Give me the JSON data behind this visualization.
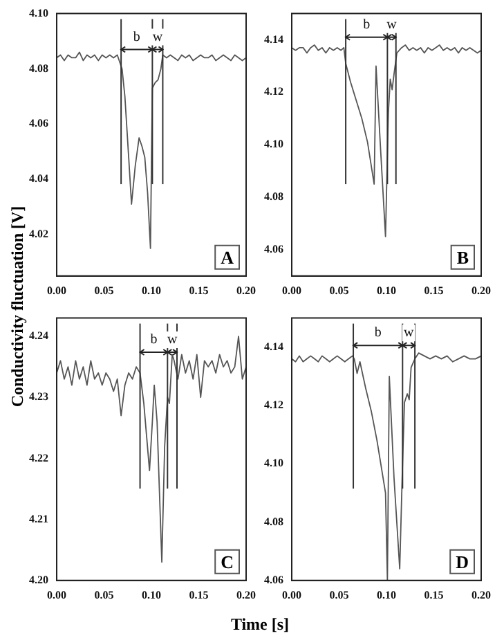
{
  "chart_data": [
    {
      "type": "line",
      "title": "A",
      "ylabel": "Conductivity fluctuation [V]",
      "xlim": [
        0,
        0.2
      ],
      "ylim": [
        4.005,
        4.1
      ],
      "xticks": [
        {
          "value": 0,
          "label": "0.00"
        },
        {
          "value": 0.05,
          "label": "0.05"
        },
        {
          "value": 0.1,
          "label": "0.10"
        },
        {
          "value": 0.15,
          "label": "0.15"
        },
        {
          "value": 0.2,
          "label": "0.20"
        }
      ],
      "yticks": [
        {
          "value": 4.02,
          "label": "4.02"
        },
        {
          "value": 4.04,
          "label": "4.04"
        },
        {
          "value": 4.06,
          "label": "4.06"
        },
        {
          "value": 4.08,
          "label": "4.08"
        },
        {
          "value": 4.1,
          "label": "4.10"
        }
      ],
      "x": [
        0,
        0.004,
        0.008,
        0.012,
        0.016,
        0.02,
        0.024,
        0.028,
        0.032,
        0.036,
        0.04,
        0.044,
        0.048,
        0.052,
        0.056,
        0.06,
        0.064,
        0.067,
        0.069,
        0.072,
        0.076,
        0.079,
        0.083,
        0.087,
        0.09,
        0.093,
        0.096,
        0.099,
        0.101,
        0.104,
        0.107,
        0.11,
        0.112,
        0.116,
        0.12,
        0.124,
        0.128,
        0.132,
        0.136,
        0.14,
        0.144,
        0.148,
        0.152,
        0.156,
        0.16,
        0.164,
        0.168,
        0.172,
        0.176,
        0.18,
        0.184,
        0.188,
        0.192,
        0.196,
        0.2
      ],
      "series": [
        {
          "color": "#555555",
          "values": [
            4.084,
            4.085,
            4.083,
            4.085,
            4.084,
            4.084,
            4.086,
            4.083,
            4.085,
            4.084,
            4.085,
            4.083,
            4.085,
            4.084,
            4.085,
            4.084,
            4.085,
            4.082,
            4.08,
            4.07,
            4.048,
            4.031,
            4.045,
            4.055,
            4.052,
            4.048,
            4.035,
            4.015,
            4.073,
            4.075,
            4.076,
            4.08,
            4.085,
            4.084,
            4.085,
            4.084,
            4.083,
            4.085,
            4.084,
            4.085,
            4.083,
            4.084,
            4.085,
            4.084,
            4.084,
            4.085,
            4.083,
            4.084,
            4.085,
            4.084,
            4.083,
            4.085,
            4.084,
            4.083,
            4.084
          ]
        }
      ],
      "ref_lines": [
        {
          "axis": "x",
          "value": 0.068,
          "color": "#333333"
        },
        {
          "axis": "x",
          "value": 0.101,
          "color": "#333333"
        },
        {
          "axis": "x",
          "value": 0.112,
          "color": "#333333"
        }
      ],
      "annotations": [
        "b",
        {
          "text": "w",
          "x": 0.1065,
          "y": 4.087
        }
      ]
    },
    {
      "type": "line",
      "title": "B",
      "xlim": [
        0,
        0.2
      ],
      "ylim": [
        4.05,
        4.15
      ],
      "xticks": [
        {
          "value": 0,
          "label": "0.00"
        },
        {
          "value": 0.05,
          "label": "0.05"
        },
        {
          "value": 0.1,
          "label": "0.10"
        },
        {
          "value": 0.15,
          "label": "0.15"
        },
        {
          "value": 0.2,
          "label": "0.20"
        }
      ],
      "yticks": [
        {
          "value": 4.06,
          "label": "4.06"
        },
        {
          "value": 4.08,
          "label": "4.08"
        },
        {
          "value": 4.1,
          "label": "4.10"
        },
        {
          "value": 4.12,
          "label": "4.12"
        },
        {
          "value": 4.14,
          "label": "4.14"
        }
      ],
      "x": [
        0,
        0.004,
        0.008,
        0.012,
        0.016,
        0.02,
        0.024,
        0.028,
        0.032,
        0.036,
        0.04,
        0.044,
        0.048,
        0.052,
        0.055,
        0.057,
        0.062,
        0.068,
        0.074,
        0.08,
        0.087,
        0.089,
        0.094,
        0.099,
        0.102,
        0.104,
        0.106,
        0.108,
        0.111,
        0.116,
        0.12,
        0.124,
        0.128,
        0.132,
        0.136,
        0.14,
        0.144,
        0.148,
        0.152,
        0.156,
        0.16,
        0.164,
        0.168,
        0.172,
        0.176,
        0.18,
        0.184,
        0.188,
        0.192,
        0.196,
        0.2
      ],
      "series": [
        {
          "color": "#555555",
          "values": [
            4.137,
            4.136,
            4.137,
            4.137,
            4.135,
            4.137,
            4.138,
            4.136,
            4.137,
            4.135,
            4.137,
            4.136,
            4.137,
            4.136,
            4.137,
            4.131,
            4.124,
            4.117,
            4.11,
            4.101,
            4.085,
            4.13,
            4.097,
            4.065,
            4.112,
            4.125,
            4.121,
            4.127,
            4.135,
            4.137,
            4.138,
            4.136,
            4.137,
            4.136,
            4.137,
            4.135,
            4.137,
            4.136,
            4.137,
            4.138,
            4.136,
            4.137,
            4.136,
            4.137,
            4.135,
            4.137,
            4.136,
            4.137,
            4.136,
            4.135,
            4.136
          ]
        }
      ],
      "ref_lines": [
        {
          "axis": "x",
          "value": 0.057,
          "color": "#333333"
        },
        {
          "axis": "x",
          "value": 0.101,
          "color": "#333333"
        },
        {
          "axis": "x",
          "value": 0.11,
          "color": "#333333"
        }
      ],
      "annotations": [
        "b",
        {
          "text": "w",
          "x": 0.1055,
          "y": 4.141
        }
      ]
    },
    {
      "type": "line",
      "title": "C",
      "xlabel": "Time [s]",
      "xlim": [
        0,
        0.2
      ],
      "ylim": [
        4.2,
        4.243
      ],
      "xticks": [
        {
          "value": 0,
          "label": "0.00"
        },
        {
          "value": 0.05,
          "label": "0.05"
        },
        {
          "value": 0.1,
          "label": "0.10"
        },
        {
          "value": 0.15,
          "label": "0.15"
        },
        {
          "value": 0.2,
          "label": "0.20"
        }
      ],
      "yticks": [
        {
          "value": 4.2,
          "label": "4.20"
        },
        {
          "value": 4.21,
          "label": "4.21"
        },
        {
          "value": 4.22,
          "label": "4.22"
        },
        {
          "value": 4.23,
          "label": "4.23"
        },
        {
          "value": 4.24,
          "label": "4.24"
        }
      ],
      "x": [
        0,
        0.004,
        0.008,
        0.012,
        0.016,
        0.02,
        0.024,
        0.028,
        0.032,
        0.036,
        0.04,
        0.044,
        0.048,
        0.052,
        0.056,
        0.06,
        0.064,
        0.068,
        0.072,
        0.076,
        0.08,
        0.084,
        0.088,
        0.092,
        0.098,
        0.101,
        0.103,
        0.106,
        0.111,
        0.114,
        0.117,
        0.119,
        0.122,
        0.124,
        0.128,
        0.132,
        0.136,
        0.14,
        0.144,
        0.148,
        0.152,
        0.156,
        0.16,
        0.164,
        0.168,
        0.172,
        0.176,
        0.18,
        0.184,
        0.188,
        0.192,
        0.196,
        0.2
      ],
      "series": [
        {
          "color": "#555555",
          "values": [
            4.234,
            4.236,
            4.233,
            4.235,
            4.232,
            4.236,
            4.233,
            4.235,
            4.232,
            4.236,
            4.233,
            4.234,
            4.232,
            4.234,
            4.233,
            4.231,
            4.233,
            4.227,
            4.232,
            4.234,
            4.233,
            4.235,
            4.234,
            4.229,
            4.218,
            4.226,
            4.232,
            4.226,
            4.203,
            4.222,
            4.23,
            4.229,
            4.237,
            4.236,
            4.233,
            4.237,
            4.234,
            4.236,
            4.233,
            4.237,
            4.23,
            4.236,
            4.235,
            4.236,
            4.234,
            4.237,
            4.235,
            4.236,
            4.234,
            4.235,
            4.24,
            4.233,
            4.235
          ]
        }
      ],
      "ref_lines": [
        {
          "axis": "x",
          "value": 0.088,
          "color": "#333333"
        },
        {
          "axis": "x",
          "value": 0.117,
          "color": "#333333"
        },
        {
          "axis": "x",
          "value": 0.127,
          "color": "#333333"
        }
      ],
      "annotations": [
        "b",
        {
          "text": "w",
          "x": 0.122,
          "y": 4.2374
        }
      ]
    },
    {
      "type": "line",
      "title": "D",
      "xlim": [
        0,
        0.2
      ],
      "ylim": [
        4.06,
        4.15
      ],
      "xticks": [
        {
          "value": 0,
          "label": "0.00"
        },
        {
          "value": 0.05,
          "label": "0.05"
        },
        {
          "value": 0.1,
          "label": "0.10"
        },
        {
          "value": 0.15,
          "label": "0.15"
        },
        {
          "value": 0.2,
          "label": "0.20"
        }
      ],
      "yticks": [
        {
          "value": 4.06,
          "label": "4.06"
        },
        {
          "value": 4.08,
          "label": "4.08"
        },
        {
          "value": 4.1,
          "label": "4.10"
        },
        {
          "value": 4.12,
          "label": "4.12"
        },
        {
          "value": 4.14,
          "label": "4.14"
        }
      ],
      "x": [
        0,
        0.004,
        0.008,
        0.012,
        0.016,
        0.02,
        0.024,
        0.028,
        0.032,
        0.036,
        0.04,
        0.044,
        0.048,
        0.052,
        0.056,
        0.06,
        0.064,
        0.066,
        0.069,
        0.072,
        0.078,
        0.084,
        0.09,
        0.095,
        0.099,
        0.101,
        0.103,
        0.108,
        0.114,
        0.117,
        0.119,
        0.122,
        0.124,
        0.126,
        0.13,
        0.134,
        0.14,
        0.146,
        0.152,
        0.158,
        0.164,
        0.17,
        0.176,
        0.182,
        0.188,
        0.194,
        0.2
      ],
      "series": [
        {
          "color": "#555555",
          "values": [
            4.136,
            4.135,
            4.137,
            4.135,
            4.136,
            4.137,
            4.136,
            4.135,
            4.137,
            4.136,
            4.135,
            4.136,
            4.137,
            4.136,
            4.135,
            4.136,
            4.137,
            4.136,
            4.131,
            4.135,
            4.126,
            4.118,
            4.108,
            4.098,
            4.09,
            4.06,
            4.13,
            4.095,
            4.064,
            4.1,
            4.121,
            4.124,
            4.122,
            4.133,
            4.136,
            4.138,
            4.137,
            4.136,
            4.137,
            4.136,
            4.137,
            4.135,
            4.136,
            4.137,
            4.136,
            4.136,
            4.137
          ]
        }
      ],
      "ref_lines": [
        {
          "axis": "x",
          "value": 0.065,
          "color": "#333333"
        },
        {
          "axis": "x",
          "value": 0.117,
          "color": "#333333"
        },
        {
          "axis": "x",
          "value": 0.13,
          "color": "#333333"
        }
      ],
      "annotations": [
        "b",
        {
          "text": "w",
          "x": 0.1235,
          "y": 4.1406
        }
      ]
    }
  ]
}
